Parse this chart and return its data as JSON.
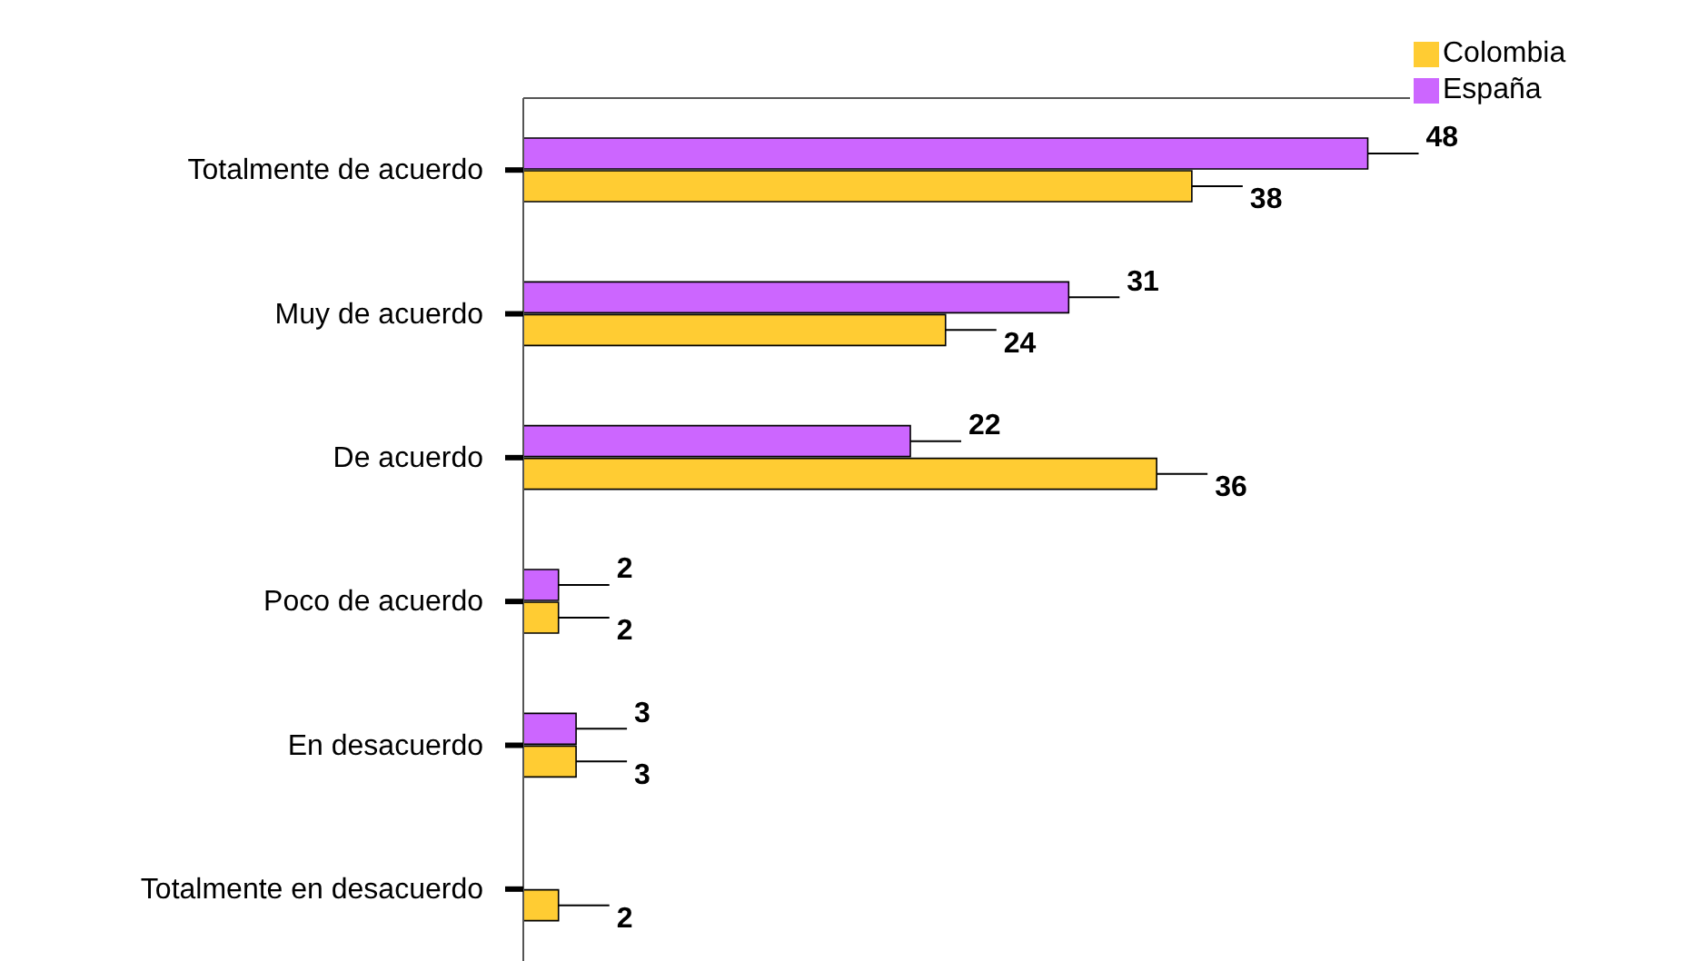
{
  "chart_data": {
    "type": "bar",
    "orientation": "horizontal",
    "categories": [
      "Totalmente de acuerdo",
      "Muy de acuerdo",
      "De acuerdo",
      "Poco de acuerdo",
      "En desacuerdo",
      "Totalmente en desacuerdo"
    ],
    "series": [
      {
        "name": "España",
        "color": "#cc66ff",
        "values": [
          48,
          31,
          22,
          2,
          3,
          null
        ]
      },
      {
        "name": "Colombia",
        "color": "#ffcc33",
        "values": [
          38,
          24,
          36,
          2,
          3,
          2
        ]
      }
    ],
    "data_labels": true,
    "legend": "top right"
  }
}
